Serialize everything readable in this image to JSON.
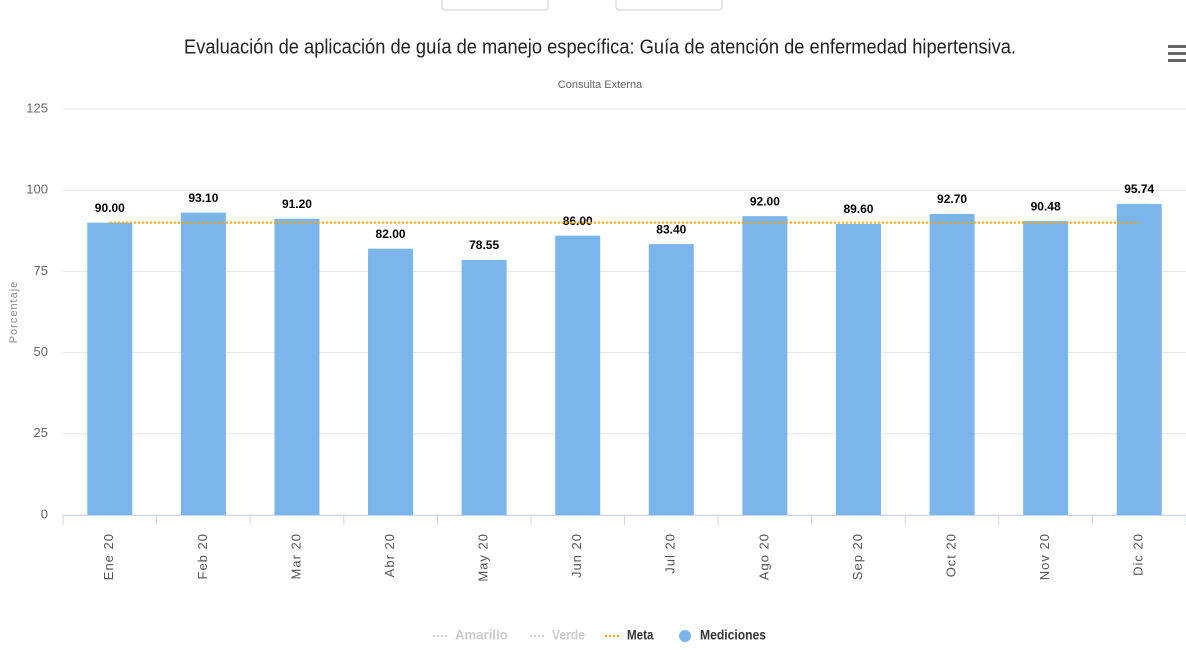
{
  "chart_data": {
    "type": "bar",
    "title": "Evaluación de aplicación de guía de manejo específica: Guía de atención de enfermedad hipertensiva.",
    "subtitle": "Consulta Externa",
    "y_label": "Porcentaje",
    "categories": [
      "Ene 20",
      "Feb 20",
      "Mar 20",
      "Abr 20",
      "May 20",
      "Jun 20",
      "Jul 20",
      "Ago 20",
      "Sep 20",
      "Oct 20",
      "Nov 20",
      "Dic 20"
    ],
    "series": [
      {
        "name": "Amarillo",
        "visible": false
      },
      {
        "name": "Verde",
        "visible": false
      },
      {
        "name": "Meta",
        "type": "line",
        "color": "#f7a300",
        "values": [
          90,
          90,
          90,
          90,
          90,
          90,
          90,
          90,
          90,
          90,
          90,
          90
        ]
      },
      {
        "name": "Mediciones",
        "type": "bar",
        "color": "#7cb5ec",
        "values": [
          90,
          93.1,
          91.2,
          82,
          78.55,
          86,
          83.4,
          92,
          89.6,
          92.7,
          90.48,
          95.74
        ],
        "value_labels": [
          "90.00",
          "93.10",
          "91.20",
          "82.00",
          "78.55",
          "86.00",
          "83.40",
          "92.00",
          "89.60",
          "92.70",
          "90.48",
          "95.74"
        ]
      }
    ],
    "ylim": [
      0,
      125
    ],
    "yticks": [
      0,
      25,
      50,
      75,
      100,
      125
    ],
    "grid": true,
    "legend": "bottom"
  }
}
